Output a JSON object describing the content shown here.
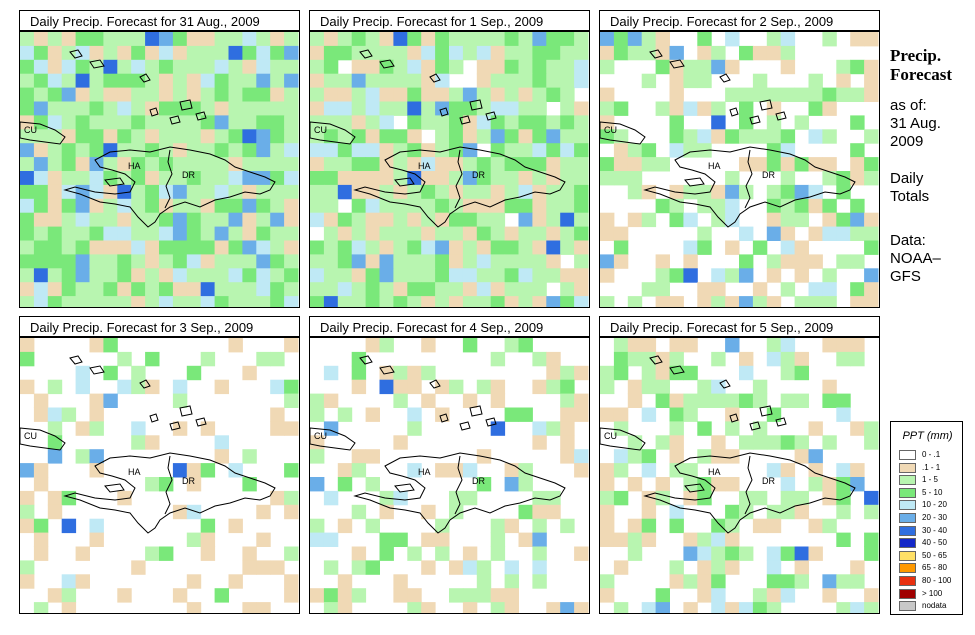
{
  "panels": [
    {
      "title": "Daily Precip. Forecast for  31 Aug., 2009",
      "seed": 1,
      "wet": 0.95
    },
    {
      "title": "Daily Precip. Forecast for  1 Sep., 2009",
      "seed": 2,
      "wet": 0.85
    },
    {
      "title": "Daily Precip. Forecast for  2 Sep., 2009",
      "seed": 3,
      "wet": 0.45
    },
    {
      "title": "Daily Precip. Forecast for  3 Sep., 2009",
      "seed": 4,
      "wet": 0.18
    },
    {
      "title": "Daily Precip. Forecast for  4 Sep., 2009",
      "seed": 5,
      "wet": 0.28
    },
    {
      "title": "Daily Precip. Forecast for  5 Sep., 2009",
      "seed": 6,
      "wet": 0.4
    }
  ],
  "map_labels": {
    "cuba": "CU",
    "haiti": "HA",
    "dominican_republic": "DR"
  },
  "side": {
    "title_line1": "Precip.",
    "title_line2": "Forecast",
    "asof_label": "as of:",
    "date_line1": "31 Aug.",
    "date_line2": "2009",
    "daily_line1": "Daily",
    "daily_line2": "Totals",
    "data_line1": "Data:",
    "data_line2": "NOAA–",
    "data_line3": "GFS"
  },
  "legend": {
    "title": "PPT (mm)",
    "items": [
      {
        "label": "0 - .1",
        "color": "#ffffff"
      },
      {
        "label": ".1 - 1",
        "color": "#f0d9b5"
      },
      {
        "label": "1 - 5",
        "color": "#b8f5b0"
      },
      {
        "label": "5 - 10",
        "color": "#7ae87a"
      },
      {
        "label": "10 - 20",
        "color": "#bfe9f5"
      },
      {
        "label": "20 - 30",
        "color": "#6aaee8"
      },
      {
        "label": "30 - 40",
        "color": "#2f6ee0"
      },
      {
        "label": "40 - 50",
        "color": "#1428c8"
      },
      {
        "label": "50 - 65",
        "color": "#ffe066"
      },
      {
        "label": "65 - 80",
        "color": "#ff9900"
      },
      {
        "label": "80 - 100",
        "color": "#e83010"
      },
      {
        "label": "> 100",
        "color": "#a00000"
      },
      {
        "label": "nodata",
        "color": "#c8c8c8"
      }
    ]
  }
}
